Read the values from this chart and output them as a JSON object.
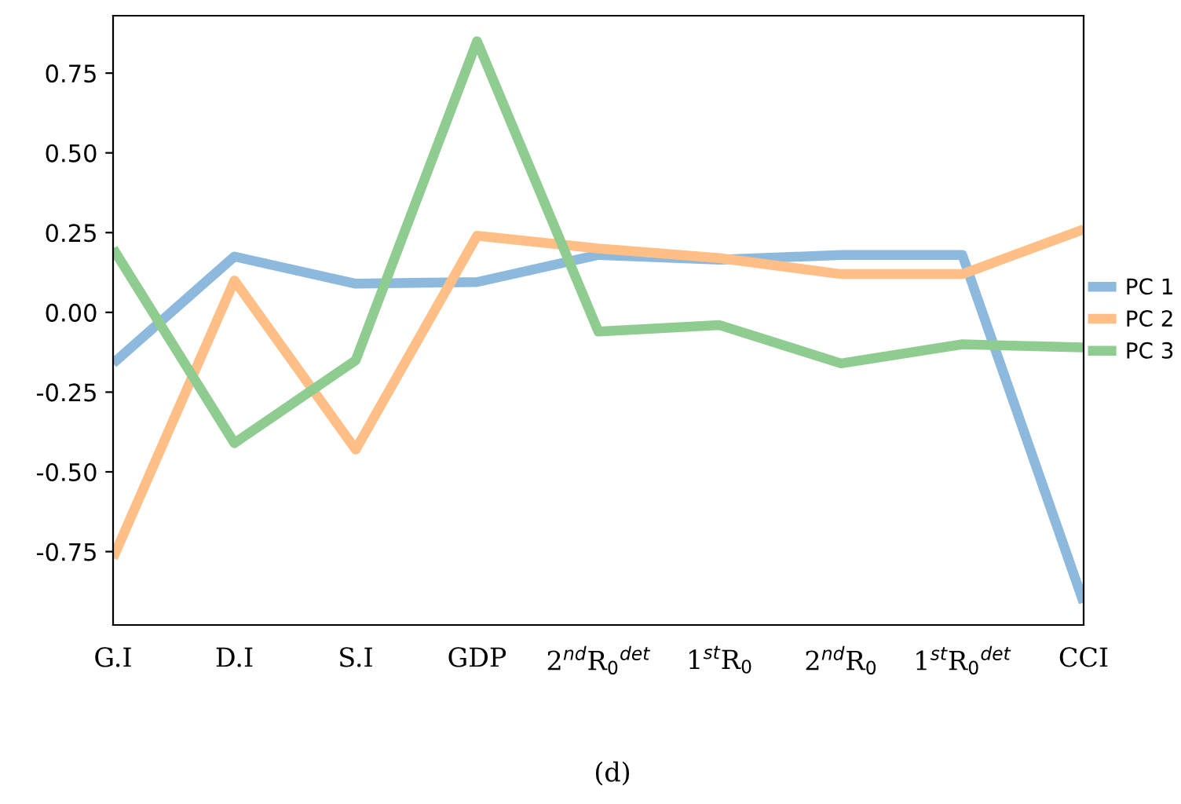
{
  "chart_data": {
    "type": "line",
    "categories": [
      "G.I",
      "D.I",
      "S.I",
      "GDP",
      "2$^{nd}$R$_{0}$$^{det}$",
      "1$^{st}$R$_{0}$",
      "2$^{nd}$R$_{0}$",
      "1$^{st}$R$_{0}$$^{det}$",
      "CCI"
    ],
    "series": [
      {
        "name": "PC 1",
        "color": "#8db9dc",
        "values": [
          -0.16,
          0.175,
          0.09,
          0.095,
          0.18,
          0.165,
          0.18,
          0.18,
          -0.91
        ]
      },
      {
        "name": "PC 2",
        "color": "#ffbf86",
        "values": [
          -0.77,
          0.1,
          -0.43,
          0.24,
          0.2,
          0.17,
          0.12,
          0.12,
          0.26
        ]
      },
      {
        "name": "PC 3",
        "color": "#8fcc8f",
        "values": [
          0.2,
          -0.41,
          -0.15,
          0.85,
          -0.06,
          -0.04,
          -0.16,
          -0.1,
          -0.11
        ]
      }
    ],
    "ylim": [
      -0.98,
      0.93
    ],
    "yticks": [
      0.75,
      {
        "value": 0.5,
        "label": "0.50"
      },
      0.25,
      {
        "value": 0,
        "label": "0.00"
      },
      -0.25,
      {
        "value": -0.5,
        "label": "-0.50"
      },
      -0.75
    ],
    "grid": false,
    "legend": "right",
    "line_style": "solid",
    "marker": "none",
    "annotations": [
      "(d)"
    ]
  }
}
